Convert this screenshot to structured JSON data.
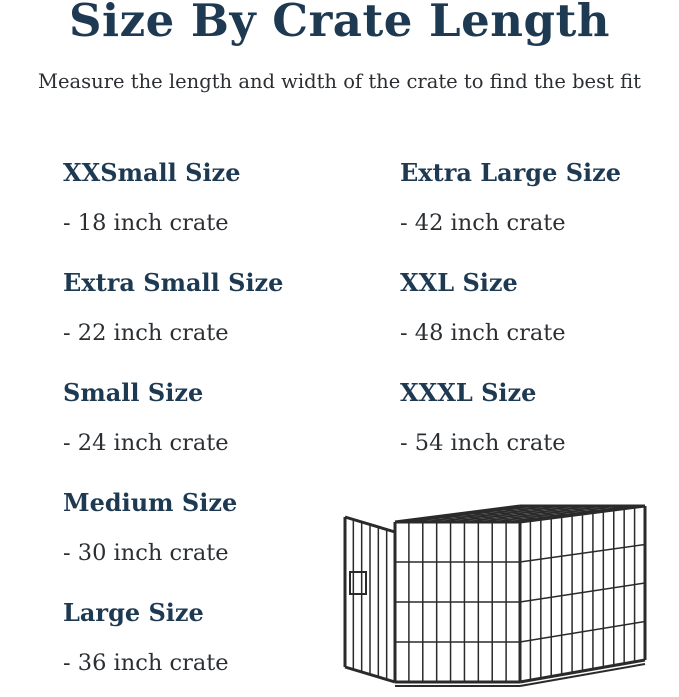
{
  "title": "Size By Crate Length",
  "subtitle": "Measure the length and width of the crate to find the best fit",
  "left_column": [
    {
      "size": "XXSmall Size",
      "crate": "- 18 inch crate"
    },
    {
      "size": "Extra Small Size",
      "crate": "- 22 inch crate"
    },
    {
      "size": "Small Size",
      "crate": "- 24 inch crate"
    },
    {
      "size": "Medium Size",
      "crate": "- 30 inch crate"
    },
    {
      "size": "Large Size",
      "crate": "- 36 inch crate"
    }
  ],
  "right_column": [
    {
      "size": "Extra Large Size",
      "crate": "- 42 inch crate"
    },
    {
      "size": "XXL Size",
      "crate": "- 48 inch crate"
    },
    {
      "size": "XXXL Size",
      "crate": "- 54 inch crate"
    }
  ],
  "colors": {
    "heading": "#1e3a52",
    "body": "#2b2f33"
  },
  "image": "wire-dog-crate-illustration"
}
